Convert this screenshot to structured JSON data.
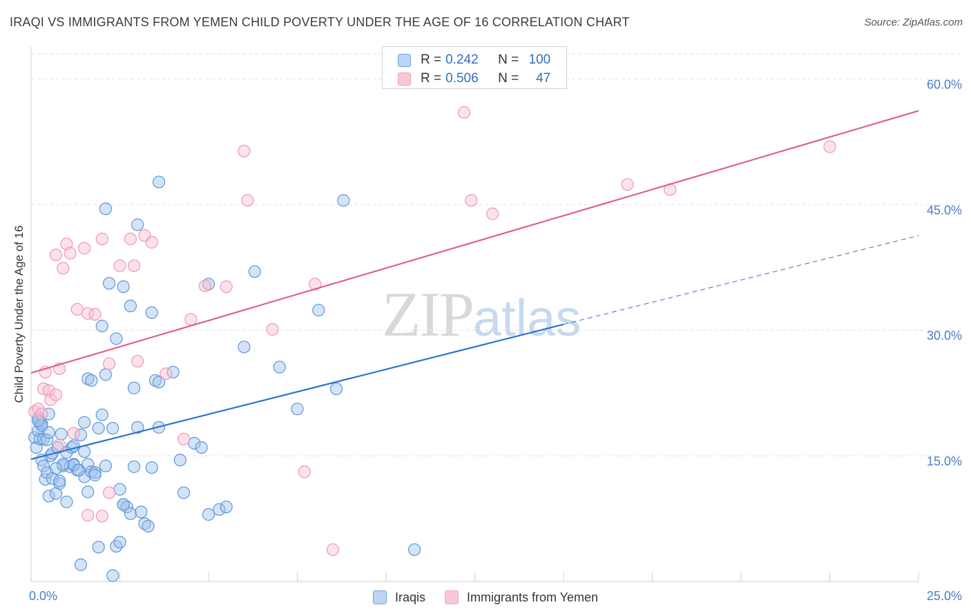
{
  "title": "IRAQI VS IMMIGRANTS FROM YEMEN CHILD POVERTY UNDER THE AGE OF 16 CORRELATION CHART",
  "source": "Source: ZipAtlas.com",
  "watermark": {
    "part1": "ZIP",
    "part2": "atlas"
  },
  "legend": {
    "rows": [
      {
        "r_label": "R =",
        "r_value": "0.242",
        "n_label": "N =",
        "n_value": "100"
      },
      {
        "r_label": "R =",
        "r_value": "0.506",
        "n_label": "N =",
        "n_value": "47"
      }
    ]
  },
  "chart_data": {
    "type": "scatter",
    "title": "IRAQI VS IMMIGRANTS FROM YEMEN CHILD POVERTY UNDER THE AGE OF 16 CORRELATION CHART",
    "xlabel": "",
    "ylabel": "Child Poverty Under the Age of 16",
    "xlim": [
      0,
      25
    ],
    "ylim": [
      0,
      63
    ],
    "x_tick_labels": [
      "0.0%",
      "25.0%"
    ],
    "y_ticks": [
      15,
      30,
      45,
      60
    ],
    "y_tick_labels": [
      "15.0%",
      "30.0%",
      "45.0%",
      "60.0%"
    ],
    "grid": true,
    "legend_position": "bottom",
    "colors": {
      "Iraqis": "#6fa3e0",
      "Immigrants from Yemen": "#f0a0b8",
      "blue_line": "#2b73d0",
      "pink_line": "#e0608a",
      "tick": "#4a7cc4"
    },
    "series": [
      {
        "name": "Iraqis",
        "r": 0.242,
        "n": 100,
        "trend": {
          "x0": 0,
          "y0": 14.6,
          "x1": 15,
          "y1": 30.7,
          "dashed_to_x": 25,
          "dashed_to_y": 41.3
        },
        "points": [
          [
            0.1,
            17.2
          ],
          [
            0.15,
            16.0
          ],
          [
            0.2,
            18.0
          ],
          [
            0.25,
            19.0
          ],
          [
            0.3,
            14.5
          ],
          [
            0.35,
            13.8
          ],
          [
            0.4,
            12.2
          ],
          [
            0.45,
            13.0
          ],
          [
            0.5,
            10.2
          ],
          [
            0.55,
            15.0
          ],
          [
            0.6,
            12.3
          ],
          [
            0.7,
            10.5
          ],
          [
            0.8,
            11.7
          ],
          [
            0.9,
            13.8
          ],
          [
            1.0,
            9.5
          ],
          [
            1.1,
            13.7
          ],
          [
            1.2,
            14.0
          ],
          [
            1.3,
            13.3
          ],
          [
            1.4,
            17.5
          ],
          [
            1.5,
            12.5
          ],
          [
            0.2,
            19.5
          ],
          [
            0.25,
            17.0
          ],
          [
            0.3,
            18.8
          ],
          [
            0.35,
            17.0
          ],
          [
            0.45,
            16.9
          ],
          [
            0.6,
            15.3
          ],
          [
            0.75,
            16.0
          ],
          [
            0.85,
            17.6
          ],
          [
            1.0,
            15.4
          ],
          [
            1.15,
            16.0
          ],
          [
            1.2,
            13.9
          ],
          [
            1.35,
            13.3
          ],
          [
            1.6,
            14.0
          ],
          [
            1.7,
            13.1
          ],
          [
            1.8,
            13.0
          ],
          [
            1.9,
            18.3
          ],
          [
            2.0,
            19.9
          ],
          [
            2.1,
            13.8
          ],
          [
            2.3,
            18.3
          ],
          [
            2.5,
            11.0
          ],
          [
            2.6,
            9.2
          ],
          [
            2.7,
            8.9
          ],
          [
            2.8,
            8.1
          ],
          [
            2.9,
            23.1
          ],
          [
            3.0,
            18.4
          ],
          [
            3.1,
            8.3
          ],
          [
            3.2,
            6.9
          ],
          [
            3.3,
            6.6
          ],
          [
            3.4,
            13.6
          ],
          [
            3.5,
            24.0
          ],
          [
            1.6,
            24.2
          ],
          [
            1.7,
            24.0
          ],
          [
            2.1,
            24.7
          ],
          [
            1.5,
            19.0
          ],
          [
            1.5,
            15.5
          ],
          [
            1.2,
            16.2
          ],
          [
            0.9,
            14.0
          ],
          [
            0.8,
            12.0
          ],
          [
            0.7,
            13.5
          ],
          [
            0.5,
            17.8
          ],
          [
            2.0,
            30.5
          ],
          [
            2.2,
            35.6
          ],
          [
            2.4,
            29.0
          ],
          [
            2.6,
            35.2
          ],
          [
            2.8,
            32.9
          ],
          [
            3.0,
            42.6
          ],
          [
            3.4,
            32.1
          ],
          [
            3.6,
            23.8
          ],
          [
            3.6,
            47.7
          ],
          [
            2.1,
            44.5
          ],
          [
            4.0,
            25.0
          ],
          [
            4.2,
            14.5
          ],
          [
            4.3,
            10.6
          ],
          [
            4.6,
            16.5
          ],
          [
            4.8,
            16.0
          ],
          [
            5.0,
            35.5
          ],
          [
            5.0,
            8.0
          ],
          [
            5.3,
            8.6
          ],
          [
            5.5,
            8.9
          ],
          [
            6.0,
            28.0
          ],
          [
            6.3,
            37.0
          ],
          [
            7.0,
            25.6
          ],
          [
            7.5,
            20.6
          ],
          [
            8.1,
            32.4
          ],
          [
            8.6,
            23.0
          ],
          [
            8.8,
            45.5
          ],
          [
            10.8,
            3.8
          ],
          [
            1.4,
            2.0
          ],
          [
            1.9,
            4.1
          ],
          [
            2.4,
            4.2
          ],
          [
            2.5,
            4.7
          ],
          [
            2.3,
            0.7
          ],
          [
            2.6,
            9.2
          ],
          [
            2.9,
            13.7
          ],
          [
            3.6,
            18.4
          ],
          [
            1.6,
            10.7
          ],
          [
            0.5,
            20.0
          ],
          [
            0.3,
            18.6
          ],
          [
            0.2,
            19.2
          ],
          [
            1.8,
            12.7
          ]
        ]
      },
      {
        "name": "Immigrants from Yemen",
        "r": 0.506,
        "n": 47,
        "trend": {
          "x0": 0,
          "y0": 24.9,
          "x1": 25,
          "y1": 56.2
        },
        "points": [
          [
            0.1,
            20.3
          ],
          [
            0.2,
            20.6
          ],
          [
            0.3,
            20.0
          ],
          [
            0.35,
            23.0
          ],
          [
            0.4,
            25.0
          ],
          [
            0.5,
            22.8
          ],
          [
            0.55,
            21.7
          ],
          [
            0.7,
            39.0
          ],
          [
            0.8,
            25.4
          ],
          [
            0.9,
            37.4
          ],
          [
            1.0,
            40.3
          ],
          [
            1.1,
            39.2
          ],
          [
            1.2,
            17.7
          ],
          [
            1.3,
            32.5
          ],
          [
            1.5,
            39.8
          ],
          [
            1.6,
            32.0
          ],
          [
            1.8,
            31.9
          ],
          [
            2.0,
            40.9
          ],
          [
            2.2,
            26.0
          ],
          [
            2.5,
            37.7
          ],
          [
            2.8,
            40.9
          ],
          [
            2.9,
            37.7
          ],
          [
            3.0,
            26.3
          ],
          [
            3.2,
            41.3
          ],
          [
            3.4,
            40.5
          ],
          [
            3.8,
            24.8
          ],
          [
            4.3,
            17.0
          ],
          [
            4.5,
            31.3
          ],
          [
            4.9,
            35.3
          ],
          [
            5.5,
            35.2
          ],
          [
            6.0,
            51.4
          ],
          [
            6.1,
            45.5
          ],
          [
            6.8,
            30.1
          ],
          [
            7.7,
            13.1
          ],
          [
            8.0,
            35.5
          ],
          [
            8.5,
            3.8
          ],
          [
            12.2,
            56.0
          ],
          [
            12.4,
            45.5
          ],
          [
            13.0,
            43.9
          ],
          [
            16.8,
            47.4
          ],
          [
            18.0,
            46.8
          ],
          [
            22.5,
            51.9
          ],
          [
            1.6,
            7.9
          ],
          [
            2.0,
            7.8
          ],
          [
            2.2,
            10.6
          ],
          [
            0.7,
            22.3
          ],
          [
            0.8,
            16.3
          ]
        ]
      }
    ]
  }
}
